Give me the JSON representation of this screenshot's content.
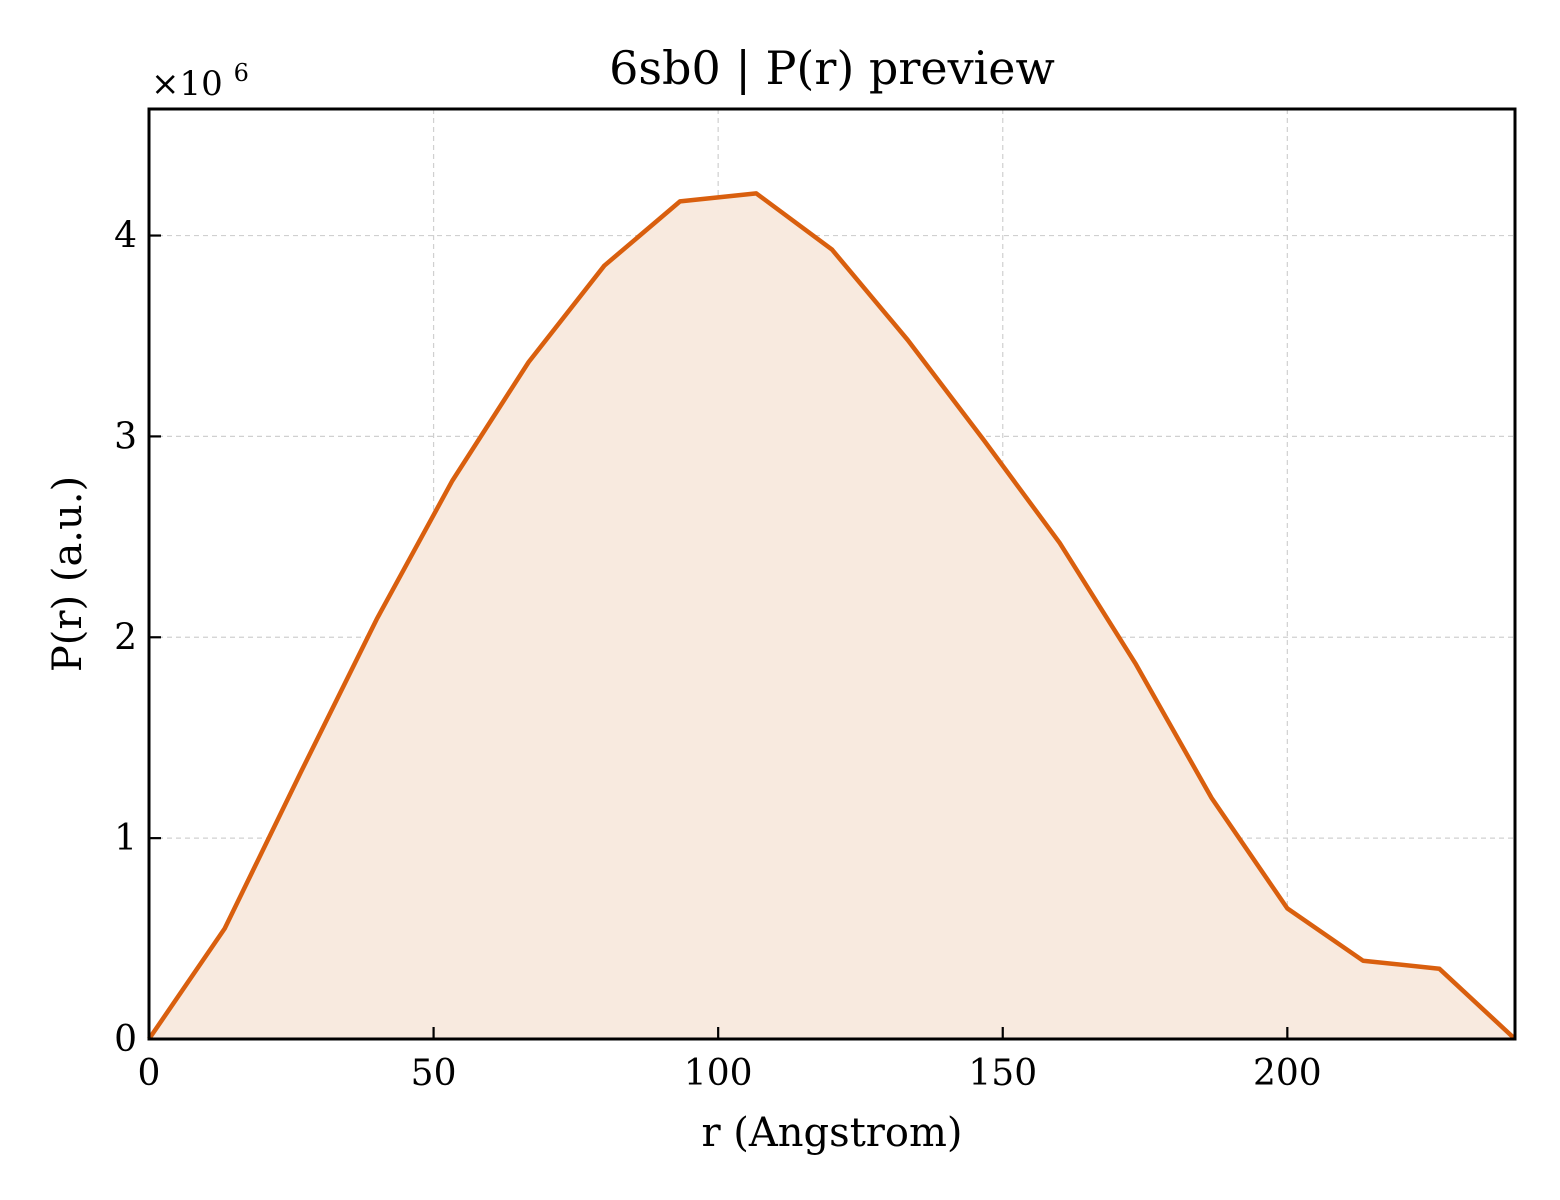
{
  "chart_data": {
    "type": "area",
    "title": "6sb0 | P(r) preview",
    "xlabel": "r (Angstrom)",
    "ylabel": "P(r) (a.u.)",
    "y_multiplier": {
      "base": "×10",
      "exponent": "6"
    },
    "xlim": [
      0,
      240
    ],
    "ylim": [
      0,
      4.63
    ],
    "xticks": [
      0,
      50,
      100,
      150,
      200
    ],
    "xtick_labels": [
      "0",
      "50",
      "100",
      "150",
      "200"
    ],
    "yticks": [
      0,
      1,
      2,
      3,
      4
    ],
    "ytick_labels": [
      "0",
      "1",
      "2",
      "3",
      "4"
    ],
    "grid": true,
    "line_color": "#d95f0e",
    "fill_color": "#f8eadf",
    "series": [
      {
        "x": [
          0,
          13.3,
          26.7,
          40,
          53.3,
          66.7,
          80,
          93.3,
          106.7,
          120,
          133.3,
          146.7,
          160,
          173.3,
          186.7,
          200,
          213.3,
          226.7,
          240
        ],
        "y": [
          0,
          0.55,
          1.33,
          2.09,
          2.78,
          3.37,
          3.85,
          4.17,
          4.21,
          3.93,
          3.48,
          2.98,
          2.47,
          1.87,
          1.2,
          0.65,
          0.39,
          0.35,
          0
        ]
      }
    ]
  }
}
